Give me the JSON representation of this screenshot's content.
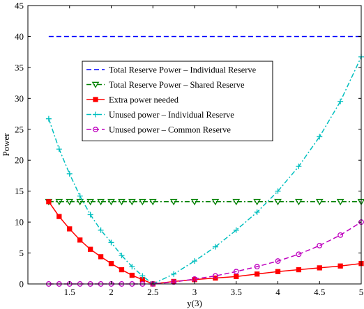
{
  "chart_data": {
    "type": "line",
    "xlabel": "y(3)",
    "ylabel": "Power",
    "xlim": [
      1,
      5
    ],
    "ylim": [
      0,
      45
    ],
    "xticks": [
      "1.5",
      "2",
      "2.5",
      "3",
      "3.5",
      "4",
      "4.5",
      "5"
    ],
    "yticks": [
      "0",
      "5",
      "10",
      "15",
      "20",
      "25",
      "30",
      "35",
      "40",
      "45"
    ],
    "grid": false,
    "legend_position": "upper-center",
    "series": [
      {
        "name": "Total Reserve Power – Individual Reserve",
        "style": "dashed",
        "marker": "none",
        "color": "#0000ff",
        "x": [
          1.25,
          5.0
        ],
        "y": [
          40,
          40
        ]
      },
      {
        "name": "Total Reserve Power – Shared Reserve",
        "style": "dashdot",
        "marker": "triangle-down",
        "color": "#008000",
        "x": [
          1.25,
          1.375,
          1.5,
          1.625,
          1.75,
          1.875,
          2.0,
          2.125,
          2.25,
          2.375,
          2.5,
          2.75,
          3.0,
          3.25,
          3.5,
          3.75,
          4.0,
          4.25,
          4.5,
          4.75,
          5.0
        ],
        "y": [
          13.3,
          13.3,
          13.3,
          13.3,
          13.3,
          13.3,
          13.3,
          13.3,
          13.3,
          13.3,
          13.3,
          13.3,
          13.3,
          13.3,
          13.3,
          13.3,
          13.3,
          13.3,
          13.3,
          13.3,
          13.3
        ]
      },
      {
        "name": "Extra power needed",
        "style": "solid",
        "marker": "square",
        "color": "#ff0000",
        "x": [
          1.25,
          1.375,
          1.5,
          1.625,
          1.75,
          1.875,
          2.0,
          2.125,
          2.25,
          2.375,
          2.5,
          2.75,
          3.0,
          3.25,
          3.5,
          3.75,
          4.0,
          4.25,
          4.5,
          4.75,
          5.0
        ],
        "y": [
          13.3,
          10.9,
          8.9,
          7.1,
          5.6,
          4.4,
          3.3,
          2.3,
          1.4,
          0.7,
          0.0,
          0.4,
          0.7,
          0.95,
          1.2,
          1.6,
          2.0,
          2.3,
          2.6,
          2.9,
          3.3
        ]
      },
      {
        "name": "Unused power – Individual Reserve",
        "style": "dashdot",
        "marker": "plus",
        "color": "#00bfbf",
        "x": [
          1.25,
          1.375,
          1.5,
          1.625,
          1.75,
          1.875,
          2.0,
          2.125,
          2.25,
          2.375,
          2.5,
          2.75,
          3.0,
          3.25,
          3.5,
          3.75,
          4.0,
          4.25,
          4.5,
          4.75,
          5.0
        ],
        "y": [
          26.7,
          21.8,
          17.8,
          14.2,
          11.2,
          8.7,
          6.7,
          4.6,
          2.8,
          1.3,
          0.0,
          1.6,
          3.7,
          6.0,
          8.7,
          11.6,
          15.0,
          19.0,
          23.8,
          29.5,
          36.7
        ]
      },
      {
        "name": "Unused power – Common Reserve",
        "style": "dashed",
        "marker": "circle",
        "color": "#bf00bf",
        "x": [
          1.25,
          1.375,
          1.5,
          1.625,
          1.75,
          1.875,
          2.0,
          2.125,
          2.25,
          2.375,
          2.5,
          2.75,
          3.0,
          3.25,
          3.5,
          3.75,
          4.0,
          4.25,
          4.5,
          4.75,
          5.0
        ],
        "y": [
          0,
          0,
          0,
          0,
          0,
          0,
          0,
          0,
          0,
          0,
          0,
          0.3,
          0.8,
          1.3,
          2.0,
          2.8,
          3.7,
          4.8,
          6.2,
          7.9,
          10.0
        ]
      }
    ]
  }
}
